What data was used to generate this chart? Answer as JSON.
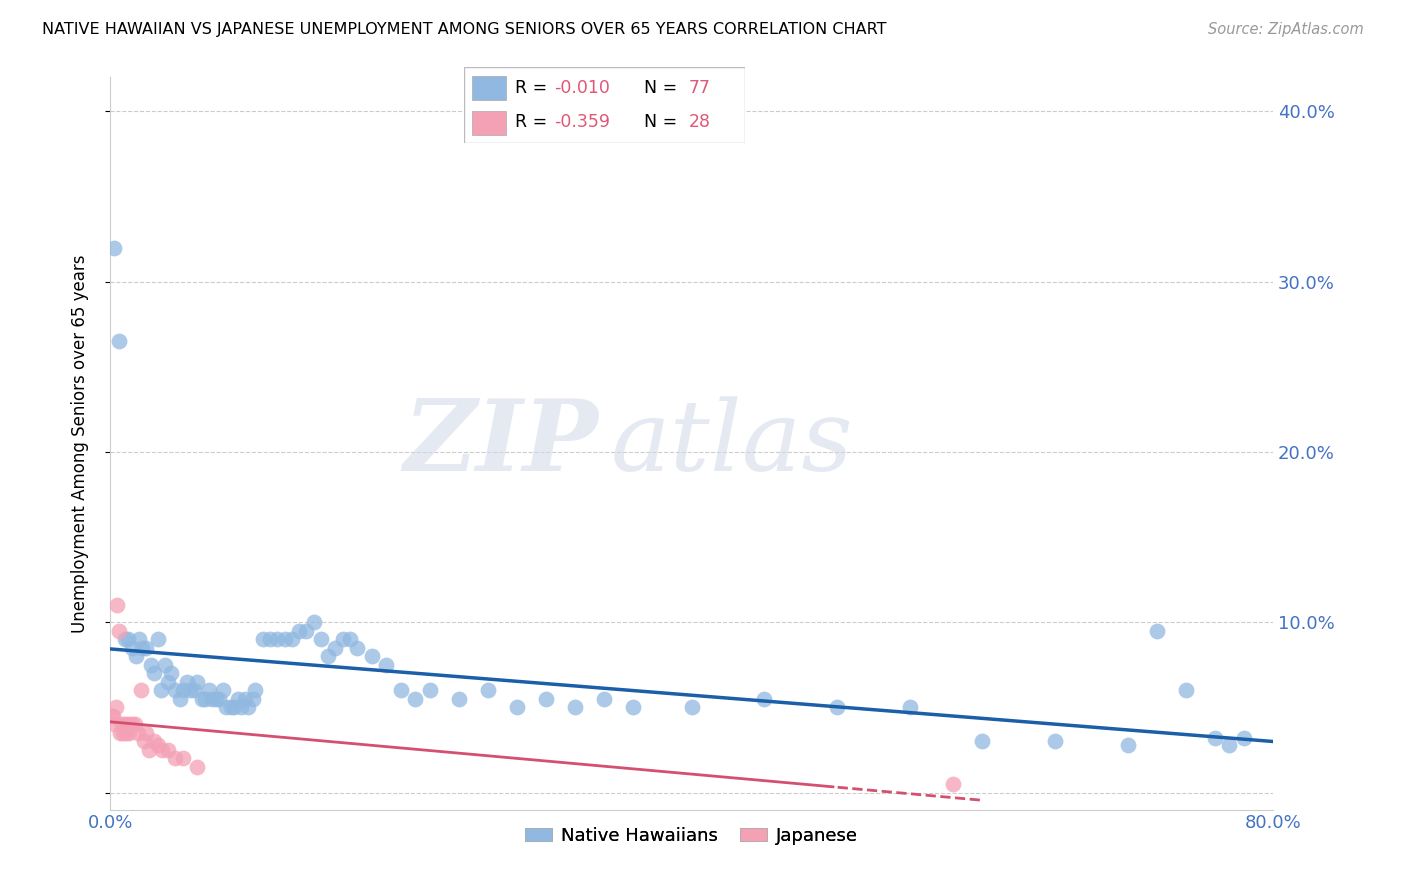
{
  "title": "NATIVE HAWAIIAN VS JAPANESE UNEMPLOYMENT AMONG SENIORS OVER 65 YEARS CORRELATION CHART",
  "source": "Source: ZipAtlas.com",
  "ylabel": "Unemployment Among Seniors over 65 years",
  "xlim": [
    0.0,
    0.8
  ],
  "ylim": [
    -0.01,
    0.42
  ],
  "xticks": [
    0.0,
    0.1,
    0.2,
    0.3,
    0.4,
    0.5,
    0.6,
    0.7,
    0.8
  ],
  "yticks": [
    0.0,
    0.1,
    0.2,
    0.3,
    0.4
  ],
  "color_hawaiian": "#90b8e0",
  "color_japanese": "#f4a0b5",
  "color_line_hawaiian": "#1a5fa8",
  "color_line_japanese": "#d45070",
  "watermark_zip": "ZIP",
  "watermark_atlas": "atlas",
  "hawaiian_x": [
    0.003,
    0.006,
    0.01,
    0.012,
    0.015,
    0.018,
    0.02,
    0.022,
    0.025,
    0.028,
    0.03,
    0.033,
    0.035,
    0.038,
    0.04,
    0.042,
    0.045,
    0.048,
    0.05,
    0.053,
    0.055,
    0.058,
    0.06,
    0.063,
    0.065,
    0.068,
    0.07,
    0.073,
    0.075,
    0.078,
    0.08,
    0.083,
    0.085,
    0.088,
    0.09,
    0.093,
    0.095,
    0.098,
    0.1,
    0.105,
    0.11,
    0.115,
    0.12,
    0.125,
    0.13,
    0.135,
    0.14,
    0.145,
    0.15,
    0.155,
    0.16,
    0.165,
    0.17,
    0.18,
    0.19,
    0.2,
    0.21,
    0.22,
    0.24,
    0.26,
    0.28,
    0.3,
    0.32,
    0.34,
    0.36,
    0.4,
    0.45,
    0.5,
    0.55,
    0.6,
    0.65,
    0.7,
    0.72,
    0.74,
    0.76,
    0.77,
    0.78
  ],
  "hawaiian_y": [
    0.32,
    0.265,
    0.09,
    0.09,
    0.085,
    0.08,
    0.09,
    0.085,
    0.085,
    0.075,
    0.07,
    0.09,
    0.06,
    0.075,
    0.065,
    0.07,
    0.06,
    0.055,
    0.06,
    0.065,
    0.06,
    0.06,
    0.065,
    0.055,
    0.055,
    0.06,
    0.055,
    0.055,
    0.055,
    0.06,
    0.05,
    0.05,
    0.05,
    0.055,
    0.05,
    0.055,
    0.05,
    0.055,
    0.06,
    0.09,
    0.09,
    0.09,
    0.09,
    0.09,
    0.095,
    0.095,
    0.1,
    0.09,
    0.08,
    0.085,
    0.09,
    0.09,
    0.085,
    0.08,
    0.075,
    0.06,
    0.055,
    0.06,
    0.055,
    0.06,
    0.05,
    0.055,
    0.05,
    0.055,
    0.05,
    0.05,
    0.055,
    0.05,
    0.05,
    0.03,
    0.03,
    0.028,
    0.095,
    0.06,
    0.032,
    0.028,
    0.032
  ],
  "japanese_x": [
    0.001,
    0.002,
    0.003,
    0.004,
    0.005,
    0.006,
    0.007,
    0.008,
    0.009,
    0.01,
    0.011,
    0.012,
    0.013,
    0.015,
    0.017,
    0.019,
    0.021,
    0.023,
    0.025,
    0.027,
    0.03,
    0.033,
    0.036,
    0.04,
    0.045,
    0.05,
    0.06,
    0.58
  ],
  "japanese_y": [
    0.045,
    0.045,
    0.04,
    0.05,
    0.11,
    0.095,
    0.035,
    0.04,
    0.035,
    0.04,
    0.035,
    0.04,
    0.035,
    0.04,
    0.04,
    0.035,
    0.06,
    0.03,
    0.035,
    0.025,
    0.03,
    0.028,
    0.025,
    0.025,
    0.02,
    0.02,
    0.015,
    0.005
  ]
}
